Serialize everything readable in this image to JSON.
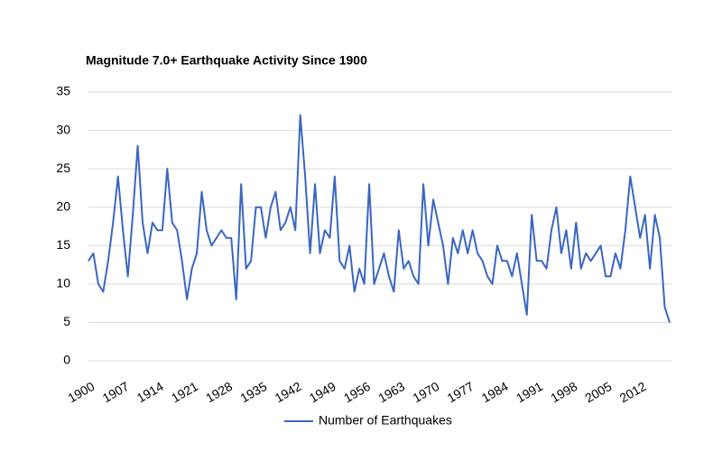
{
  "chart_data": {
    "type": "line",
    "title": "Magnitude 7.0+ Earthquake Activity Since 1900",
    "categories": [
      "1900",
      null,
      null,
      null,
      null,
      null,
      null,
      "1907",
      null,
      null,
      null,
      null,
      null,
      null,
      "1914",
      null,
      null,
      null,
      null,
      null,
      null,
      "1921",
      null,
      null,
      null,
      null,
      null,
      null,
      "1928",
      null,
      null,
      null,
      null,
      null,
      null,
      "1935",
      null,
      null,
      null,
      null,
      null,
      null,
      "1942",
      null,
      null,
      null,
      null,
      null,
      null,
      "1949",
      null,
      null,
      null,
      null,
      null,
      null,
      "1956",
      null,
      null,
      null,
      null,
      null,
      null,
      "1963",
      null,
      null,
      null,
      null,
      null,
      null,
      "1970",
      null,
      null,
      null,
      null,
      null,
      null,
      "1977",
      null,
      null,
      null,
      null,
      null,
      null,
      "1984",
      null,
      null,
      null,
      null,
      null,
      null,
      "1991",
      null,
      null,
      null,
      null,
      null,
      null,
      "1998",
      null,
      null,
      null,
      null,
      null,
      null,
      "2005",
      null,
      null,
      null,
      null,
      null,
      null,
      "2012",
      null,
      null,
      null,
      null,
      null,
      null
    ],
    "series": [
      {
        "name": "Number of Earthquakes",
        "color": "#3a66c2",
        "values": [
          13,
          14,
          10,
          9,
          13,
          18,
          24,
          17,
          11,
          19,
          28,
          18,
          14,
          18,
          17,
          17,
          25,
          18,
          17,
          13,
          8,
          12,
          14,
          22,
          17,
          15,
          16,
          17,
          16,
          16,
          8,
          23,
          12,
          13,
          20,
          20,
          16,
          20,
          22,
          17,
          18,
          20,
          17,
          32,
          24,
          14,
          23,
          14,
          17,
          16,
          24,
          13,
          12,
          15,
          9,
          12,
          10,
          23,
          10,
          12,
          14,
          11,
          9,
          17,
          12,
          13,
          11,
          10,
          23,
          15,
          21,
          18,
          15,
          10,
          16,
          14,
          17,
          14,
          17,
          14,
          13,
          11,
          10,
          15,
          13,
          13,
          11,
          14,
          10,
          6,
          19,
          13,
          13,
          12,
          17,
          20,
          14,
          17,
          12,
          18,
          12,
          14,
          13,
          14,
          15,
          11,
          11,
          14,
          12,
          17,
          24,
          20,
          16,
          19,
          12,
          19,
          16,
          7,
          5
        ]
      }
    ],
    "ylim": [
      0,
      35
    ],
    "yticks": [
      0,
      5,
      10,
      15,
      20,
      25,
      30,
      35
    ],
    "grid": true,
    "legend": "bottom"
  }
}
